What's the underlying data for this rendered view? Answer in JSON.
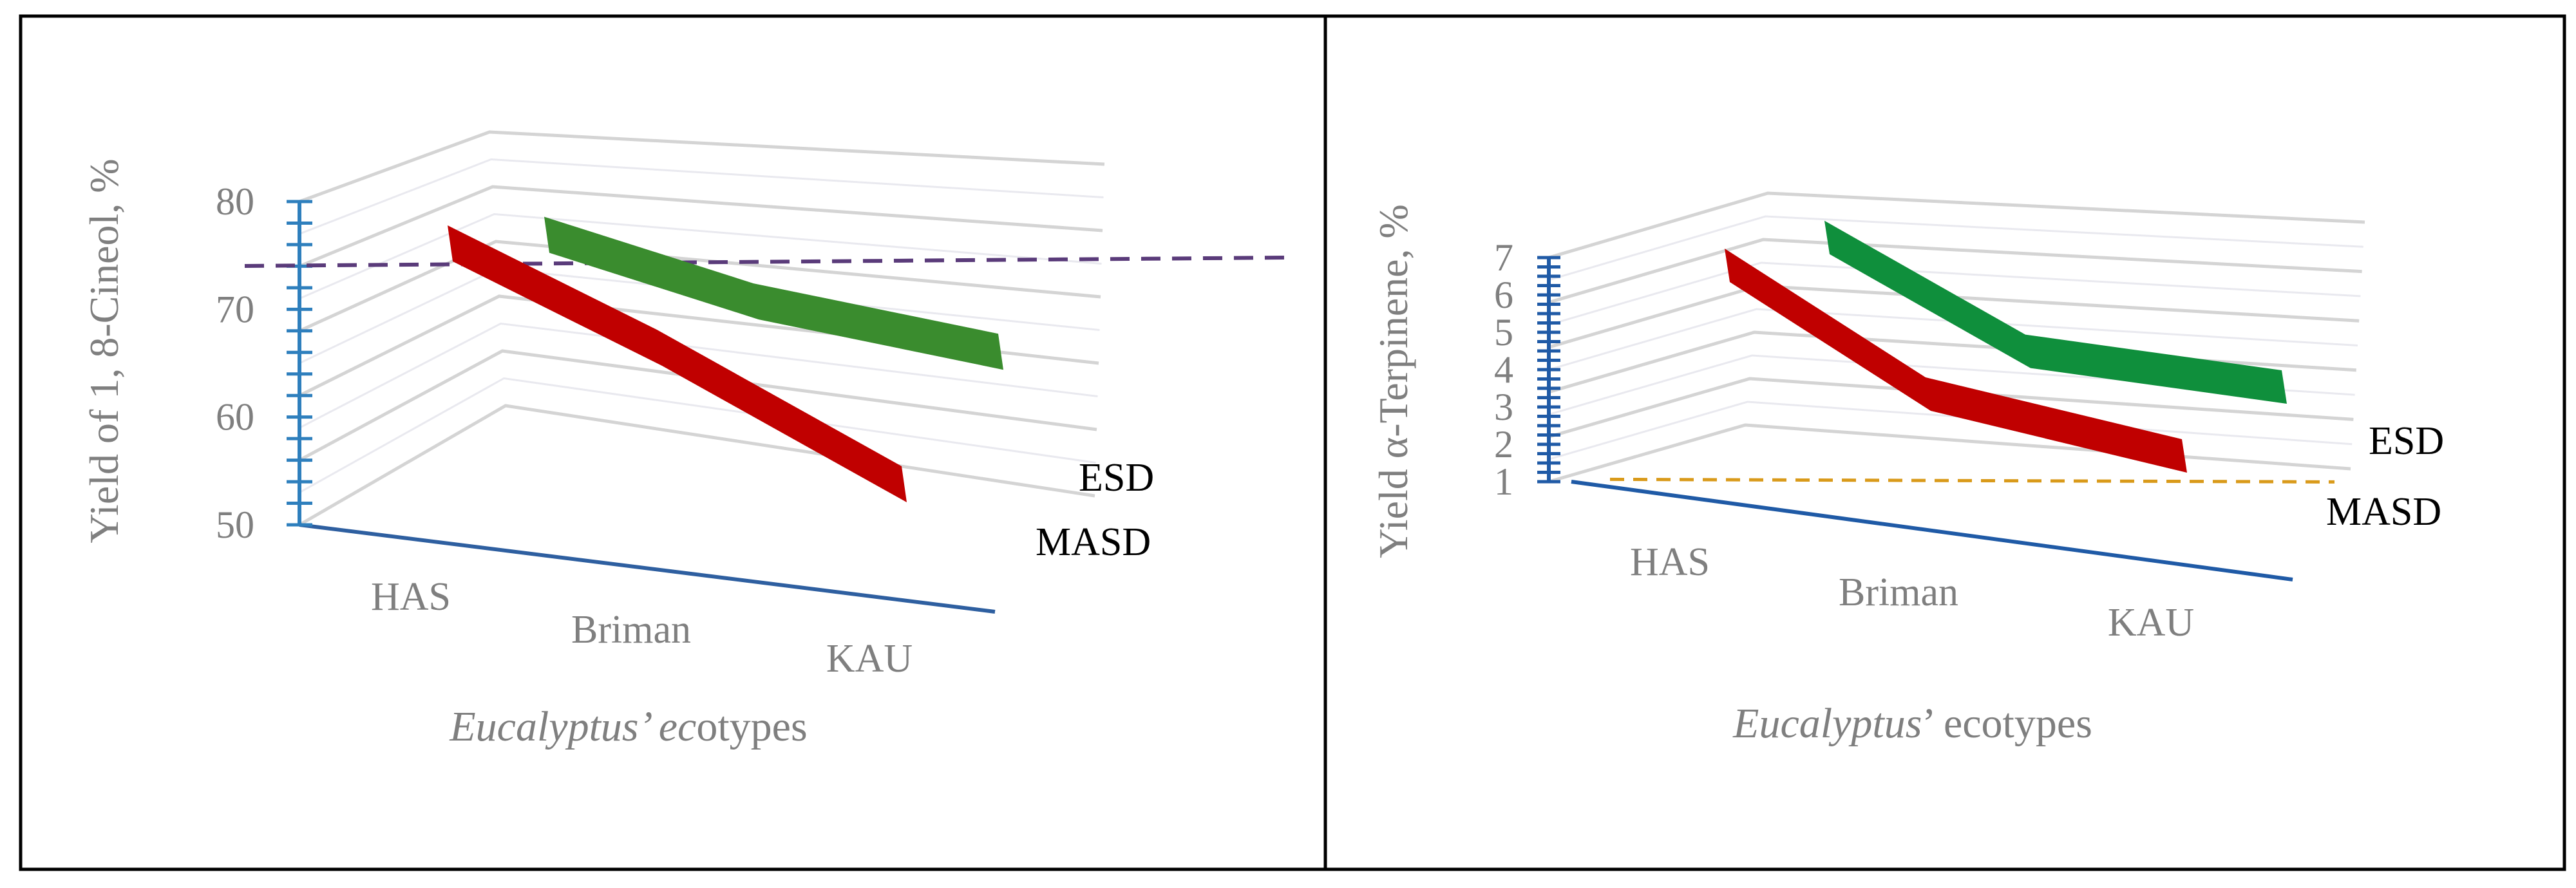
{
  "chart_data": [
    {
      "type": "line",
      "style": "3d",
      "categories": [
        "HAS",
        "Briman",
        "KAU"
      ],
      "series": [
        {
          "name": "ESD",
          "values": [
            76,
            68,
            60
          ],
          "color": "#3a8c2e"
        },
        {
          "name": "MASD",
          "values": [
            75.5,
            64,
            48
          ],
          "color": "#c00000"
        }
      ],
      "reference_line": {
        "value": 74.5,
        "color": "#5a3b7a",
        "style": "dashed"
      },
      "ylabel": "Yield of 1, 8-Cineol, %",
      "xlabel_italic": "Eucalyptus’ ec",
      "xlabel_rest": "otypes",
      "ylim": [
        50,
        80
      ],
      "yticks": [
        "50",
        "60",
        "70",
        "80"
      ],
      "axis_color": "#2e7fbd",
      "grid": true
    },
    {
      "type": "line",
      "style": "3d",
      "categories": [
        "HAS",
        "Briman",
        "KAU"
      ],
      "series": [
        {
          "name": "ESD",
          "values": [
            7.3,
            3.7,
            2.6
          ],
          "color": "#0f8f3c"
        },
        {
          "name": "MASD",
          "values": [
            6.9,
            2.9,
            1.1
          ],
          "color": "#c00000"
        }
      ],
      "reference_line": {
        "value": 1.2,
        "color": "#d99a1a",
        "style": "dashed"
      },
      "ylabel": "Yield α-Terpinene, %",
      "xlabel_italic": "Eucalyptus",
      "xlabel_rest": "’ ecotypes",
      "ylim": [
        1,
        7
      ],
      "yticks": [
        "1",
        "2",
        "3",
        "4",
        "5",
        "6",
        "7"
      ],
      "axis_color": "#1f5aa6",
      "grid": true
    }
  ]
}
